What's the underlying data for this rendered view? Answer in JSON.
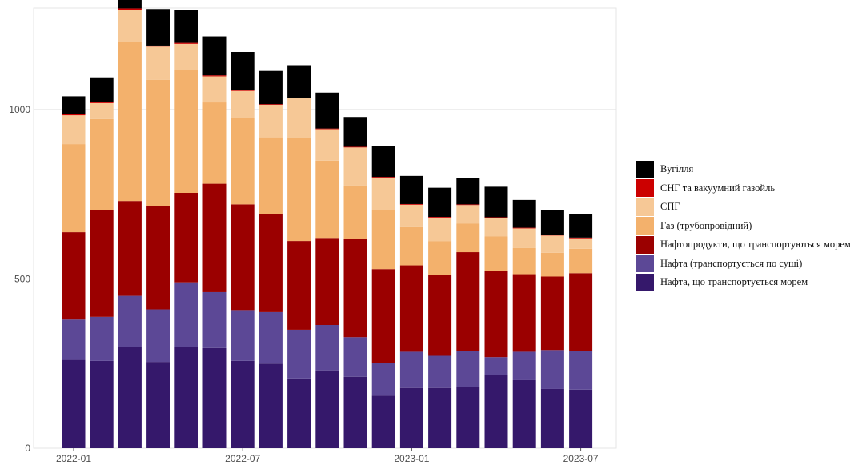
{
  "chart_data": {
    "type": "bar",
    "stacked": true,
    "title": "",
    "xlabel": "",
    "ylabel": "",
    "ylim": [
      0,
      1300
    ],
    "y_ticks": [
      0,
      500,
      1000
    ],
    "grid": "horizontal",
    "legend_position": "right",
    "x_tick_labels": [
      {
        "category": "2022-01",
        "label": "2022-01"
      },
      {
        "category": "2022-07",
        "label": "2022-07"
      },
      {
        "category": "2023-01",
        "label": "2023-01"
      },
      {
        "category": "2023-07",
        "label": "2023-07"
      }
    ],
    "categories": [
      "2022-01",
      "2022-02",
      "2022-03",
      "2022-04",
      "2022-05",
      "2022-06",
      "2022-07",
      "2022-08",
      "2022-09",
      "2022-10",
      "2022-11",
      "2022-12",
      "2023-01",
      "2023-02",
      "2023-03",
      "2023-04",
      "2023-05",
      "2023-06",
      "2023-07"
    ],
    "series": [
      {
        "name": "Нафта, що транспортується морем",
        "color": "#35186b",
        "values": [
          261,
          258,
          298,
          255,
          300,
          296,
          258,
          250,
          206,
          230,
          211,
          155,
          178,
          178,
          182,
          217,
          201,
          175,
          173
        ]
      },
      {
        "name": "Нафта (транспортується по суші)",
        "color": "#5c4896",
        "values": [
          119,
          130,
          152,
          155,
          190,
          165,
          150,
          152,
          144,
          134,
          117,
          96,
          107,
          95,
          106,
          52,
          84,
          115,
          113
        ]
      },
      {
        "name": "Нафтопродукти, що транспортуються морем",
        "color": "#9b0000",
        "values": [
          258,
          316,
          280,
          305,
          264,
          320,
          312,
          289,
          262,
          257,
          291,
          278,
          255,
          238,
          291,
          255,
          229,
          217,
          231
        ]
      },
      {
        "name": "Газ (трубопровідний)",
        "color": "#f3b16c",
        "values": [
          260,
          268,
          470,
          373,
          362,
          240,
          256,
          227,
          304,
          228,
          157,
          173,
          113,
          100,
          84,
          102,
          77,
          70,
          72
        ]
      },
      {
        "name": "СПГ",
        "color": "#f6c896",
        "values": [
          85,
          47,
          95,
          98,
          78,
          77,
          79,
          96,
          117,
          93,
          112,
          97,
          66,
          70,
          55,
          54,
          58,
          51,
          31
        ]
      },
      {
        "name": "СНГ та вакуумний газойль",
        "color": "#cc0000",
        "values": [
          3,
          3,
          4,
          3,
          3,
          3,
          2,
          2,
          2,
          2,
          2,
          2,
          2,
          2,
          2,
          2,
          2,
          2,
          2
        ]
      },
      {
        "name": "Вугілля",
        "color": "#000000",
        "values": [
          53,
          73,
          83,
          108,
          98,
          115,
          113,
          98,
          96,
          106,
          88,
          92,
          83,
          86,
          77,
          90,
          82,
          74,
          70
        ]
      }
    ]
  }
}
